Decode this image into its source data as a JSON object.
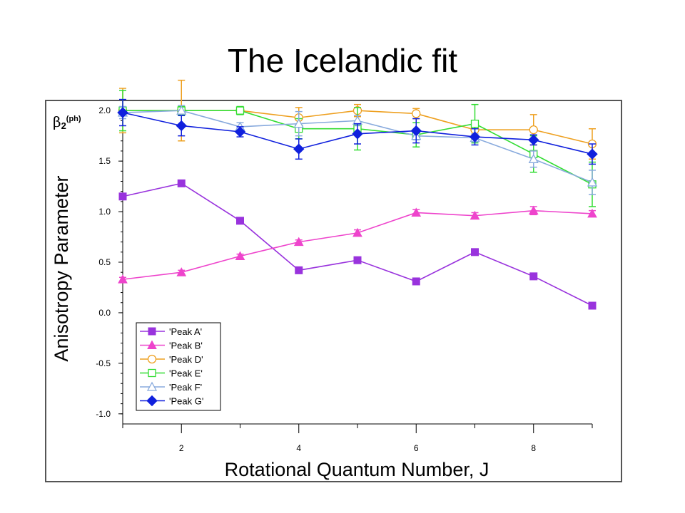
{
  "slide": {
    "title": "The Icelandic fit"
  },
  "chart_data": {
    "type": "line",
    "ylabel": "Anisotropy Parameter",
    "xlabel": "Rotational Quantum Number, J",
    "corner_label": {
      "base": "β",
      "sub": "2",
      "sup": "(ph)"
    },
    "xlim": [
      1,
      9
    ],
    "ylim": [
      -1.1,
      2.1
    ],
    "xticks": [
      2,
      4,
      6,
      8
    ],
    "yticks": [
      -1.0,
      -0.5,
      0.0,
      0.5,
      1.0,
      1.5,
      2.0
    ],
    "ytick_labels": [
      "-1.0",
      "-0.5",
      "0.0",
      "0.5",
      "1.0",
      "1.5",
      "2.0"
    ],
    "xtick_labels": [
      "2",
      "4",
      "6",
      "8"
    ],
    "grid": false,
    "legend_position": "bottom-left",
    "x": [
      1,
      2,
      3,
      4,
      5,
      6,
      7,
      8,
      9
    ],
    "series": [
      {
        "name": "'Peak A'",
        "color": "#9933dd",
        "marker": "square-filled",
        "values": [
          1.15,
          1.28,
          0.91,
          0.42,
          0.52,
          0.31,
          0.6,
          0.36,
          0.07
        ],
        "errors": [
          0.02,
          0.02,
          0.02,
          0.02,
          0.02,
          0.02,
          0.02,
          0.02,
          0.02
        ]
      },
      {
        "name": "'Peak B'",
        "color": "#ee44cc",
        "marker": "triangle-filled",
        "values": [
          0.33,
          0.4,
          0.56,
          0.7,
          0.79,
          0.99,
          0.96,
          1.01,
          0.98
        ],
        "errors": [
          0.02,
          0.02,
          0.02,
          0.02,
          0.03,
          0.03,
          0.03,
          0.04,
          0.03
        ]
      },
      {
        "name": "'Peak D'",
        "color": "#eea020",
        "marker": "circle-open",
        "values": [
          2.0,
          2.0,
          2.0,
          1.93,
          2.0,
          1.97,
          1.81,
          1.81,
          1.67
        ],
        "errors": [
          0.22,
          0.3,
          0.03,
          0.1,
          0.06,
          0.05,
          0.05,
          0.15,
          0.15
        ]
      },
      {
        "name": "'Peak E'",
        "color": "#33dd33",
        "marker": "square-open",
        "values": [
          2.0,
          2.0,
          2.0,
          1.82,
          1.82,
          1.76,
          1.87,
          1.57,
          1.27
        ],
        "errors": [
          0.2,
          0.04,
          0.04,
          0.1,
          0.21,
          0.12,
          0.19,
          0.18,
          0.22
        ]
      },
      {
        "name": "'Peak F'",
        "color": "#88aadd",
        "marker": "triangle-open",
        "values": [
          1.98,
          2.0,
          1.84,
          1.87,
          1.9,
          1.75,
          1.73,
          1.52,
          1.29
        ],
        "errors": [
          0.06,
          0.05,
          0.04,
          0.12,
          0.05,
          0.04,
          0.04,
          0.08,
          0.12
        ]
      },
      {
        "name": "'Peak G'",
        "color": "#1020dd",
        "marker": "diamond-filled",
        "values": [
          1.98,
          1.85,
          1.79,
          1.62,
          1.77,
          1.8,
          1.74,
          1.71,
          1.57
        ],
        "errors": [
          0.13,
          0.1,
          0.05,
          0.1,
          0.1,
          0.12,
          0.08,
          0.05,
          0.1
        ]
      }
    ]
  }
}
